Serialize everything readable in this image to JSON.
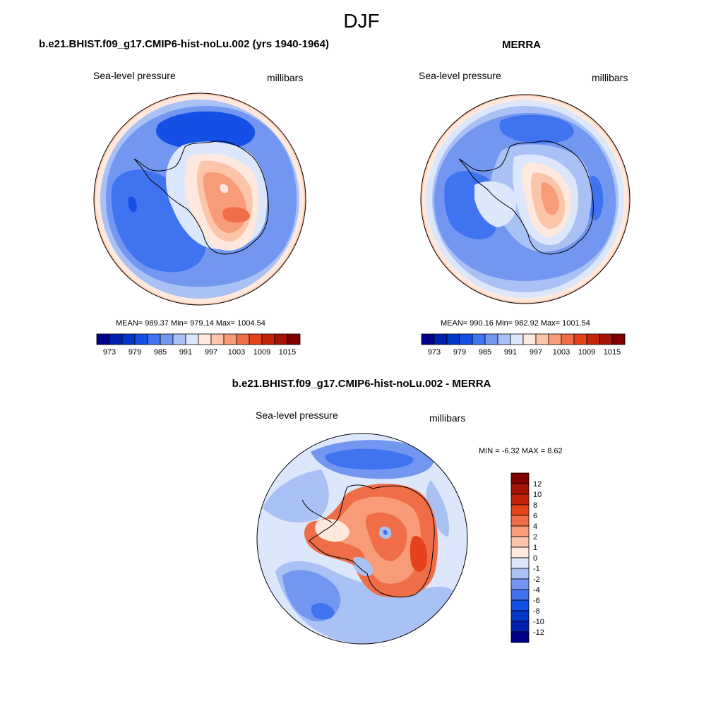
{
  "figure": {
    "title": "DJF",
    "palette": [
      "#00008b",
      "#0020b0",
      "#0037c8",
      "#1450e6",
      "#3f73f0",
      "#7397f0",
      "#a9c1f5",
      "#dce7fb",
      "#ffe8dd",
      "#fcc4a8",
      "#f89b78",
      "#ef6e47",
      "#e5421d",
      "#c42407",
      "#a51405",
      "#800000"
    ]
  },
  "panels": [
    {
      "title": "b.e21.BHIST.f09_g17.CMIP6-hist-noLu.002 (yrs 1940-1964)",
      "left_label": "Sea-level pressure",
      "right_label": "millibars",
      "stats": "MEAN= 989.37  Min= 979.14  Max= 1004.54",
      "colorbar_ticks": [
        "973",
        "979",
        "985",
        "991",
        "997",
        "1003",
        "1009",
        "1015"
      ]
    },
    {
      "title": "MERRA",
      "left_label": "Sea-level pressure",
      "right_label": "millibars",
      "stats": "MEAN= 990.16  Min= 982.92  Max= 1001.54",
      "colorbar_ticks": [
        "973",
        "979",
        "985",
        "991",
        "997",
        "1003",
        "1009",
        "1015"
      ]
    }
  ],
  "difference": {
    "title": "b.e21.BHIST.f09_g17.CMIP6-hist-noLu.002 - MERRA",
    "left_label": "Sea-level pressure",
    "right_label": "millibars",
    "stats": "MIN =  -6.32 MAX =   8.62",
    "colorbar_ticks": [
      "12",
      "10",
      "8",
      "6",
      "4",
      "2",
      "1",
      "0",
      "-1",
      "-2",
      "-4",
      "-6",
      "-8",
      "-10",
      "-12"
    ]
  },
  "chart_data": [
    {
      "type": "heatmap",
      "projection": "south polar stereographic",
      "variable": "Sea-level pressure",
      "units": "millibars",
      "title": "b.e21.BHIST.f09_g17.CMIP6-hist-noLu.002 (yrs 1940-1964)",
      "mean": 989.37,
      "min": 979.14,
      "max": 1004.54,
      "contour_levels": [
        973,
        976,
        979,
        982,
        985,
        988,
        991,
        994,
        997,
        1000,
        1003,
        1006,
        1009,
        1012,
        1015
      ]
    },
    {
      "type": "heatmap",
      "projection": "south polar stereographic",
      "variable": "Sea-level pressure",
      "units": "millibars",
      "title": "MERRA",
      "mean": 990.16,
      "min": 982.92,
      "max": 1001.54,
      "contour_levels": [
        973,
        976,
        979,
        982,
        985,
        988,
        991,
        994,
        997,
        1000,
        1003,
        1006,
        1009,
        1012,
        1015
      ]
    },
    {
      "type": "heatmap",
      "projection": "south polar stereographic",
      "variable": "Sea-level pressure",
      "units": "millibars",
      "title": "b.e21.BHIST.f09_g17.CMIP6-hist-noLu.002 - MERRA",
      "min": -6.32,
      "max": 8.62,
      "contour_levels": [
        -12,
        -10,
        -8,
        -6,
        -4,
        -2,
        -1,
        0,
        1,
        2,
        4,
        6,
        8,
        10,
        12
      ]
    }
  ]
}
